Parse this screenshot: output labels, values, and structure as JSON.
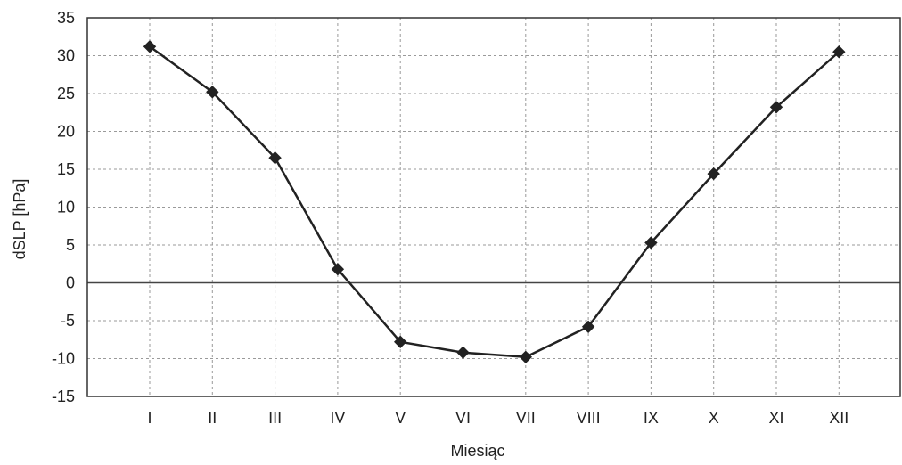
{
  "chart_data": {
    "type": "line",
    "title": "",
    "xlabel": "Miesiąc",
    "ylabel": "dSLP [hPa]",
    "categories": [
      "I",
      "II",
      "III",
      "IV",
      "V",
      "VI",
      "VII",
      "VIII",
      "IX",
      "X",
      "XI",
      "XII"
    ],
    "series": [
      {
        "values": [
          31.2,
          25.2,
          16.5,
          1.8,
          -7.8,
          -9.2,
          -9.8,
          -5.8,
          5.3,
          14.4,
          23.2,
          30.5
        ]
      }
    ],
    "ylim": [
      -15,
      35
    ],
    "yticks": [
      -15,
      -10,
      -5,
      0,
      5,
      10,
      15,
      20,
      25,
      30,
      35
    ],
    "grid": true,
    "zero_line": true,
    "marker": "diamond",
    "colors": {
      "line": "#222222",
      "marker": "#222222",
      "grid": "#9a9a9a",
      "frame": "#333333",
      "zero_line": "#444444"
    }
  }
}
